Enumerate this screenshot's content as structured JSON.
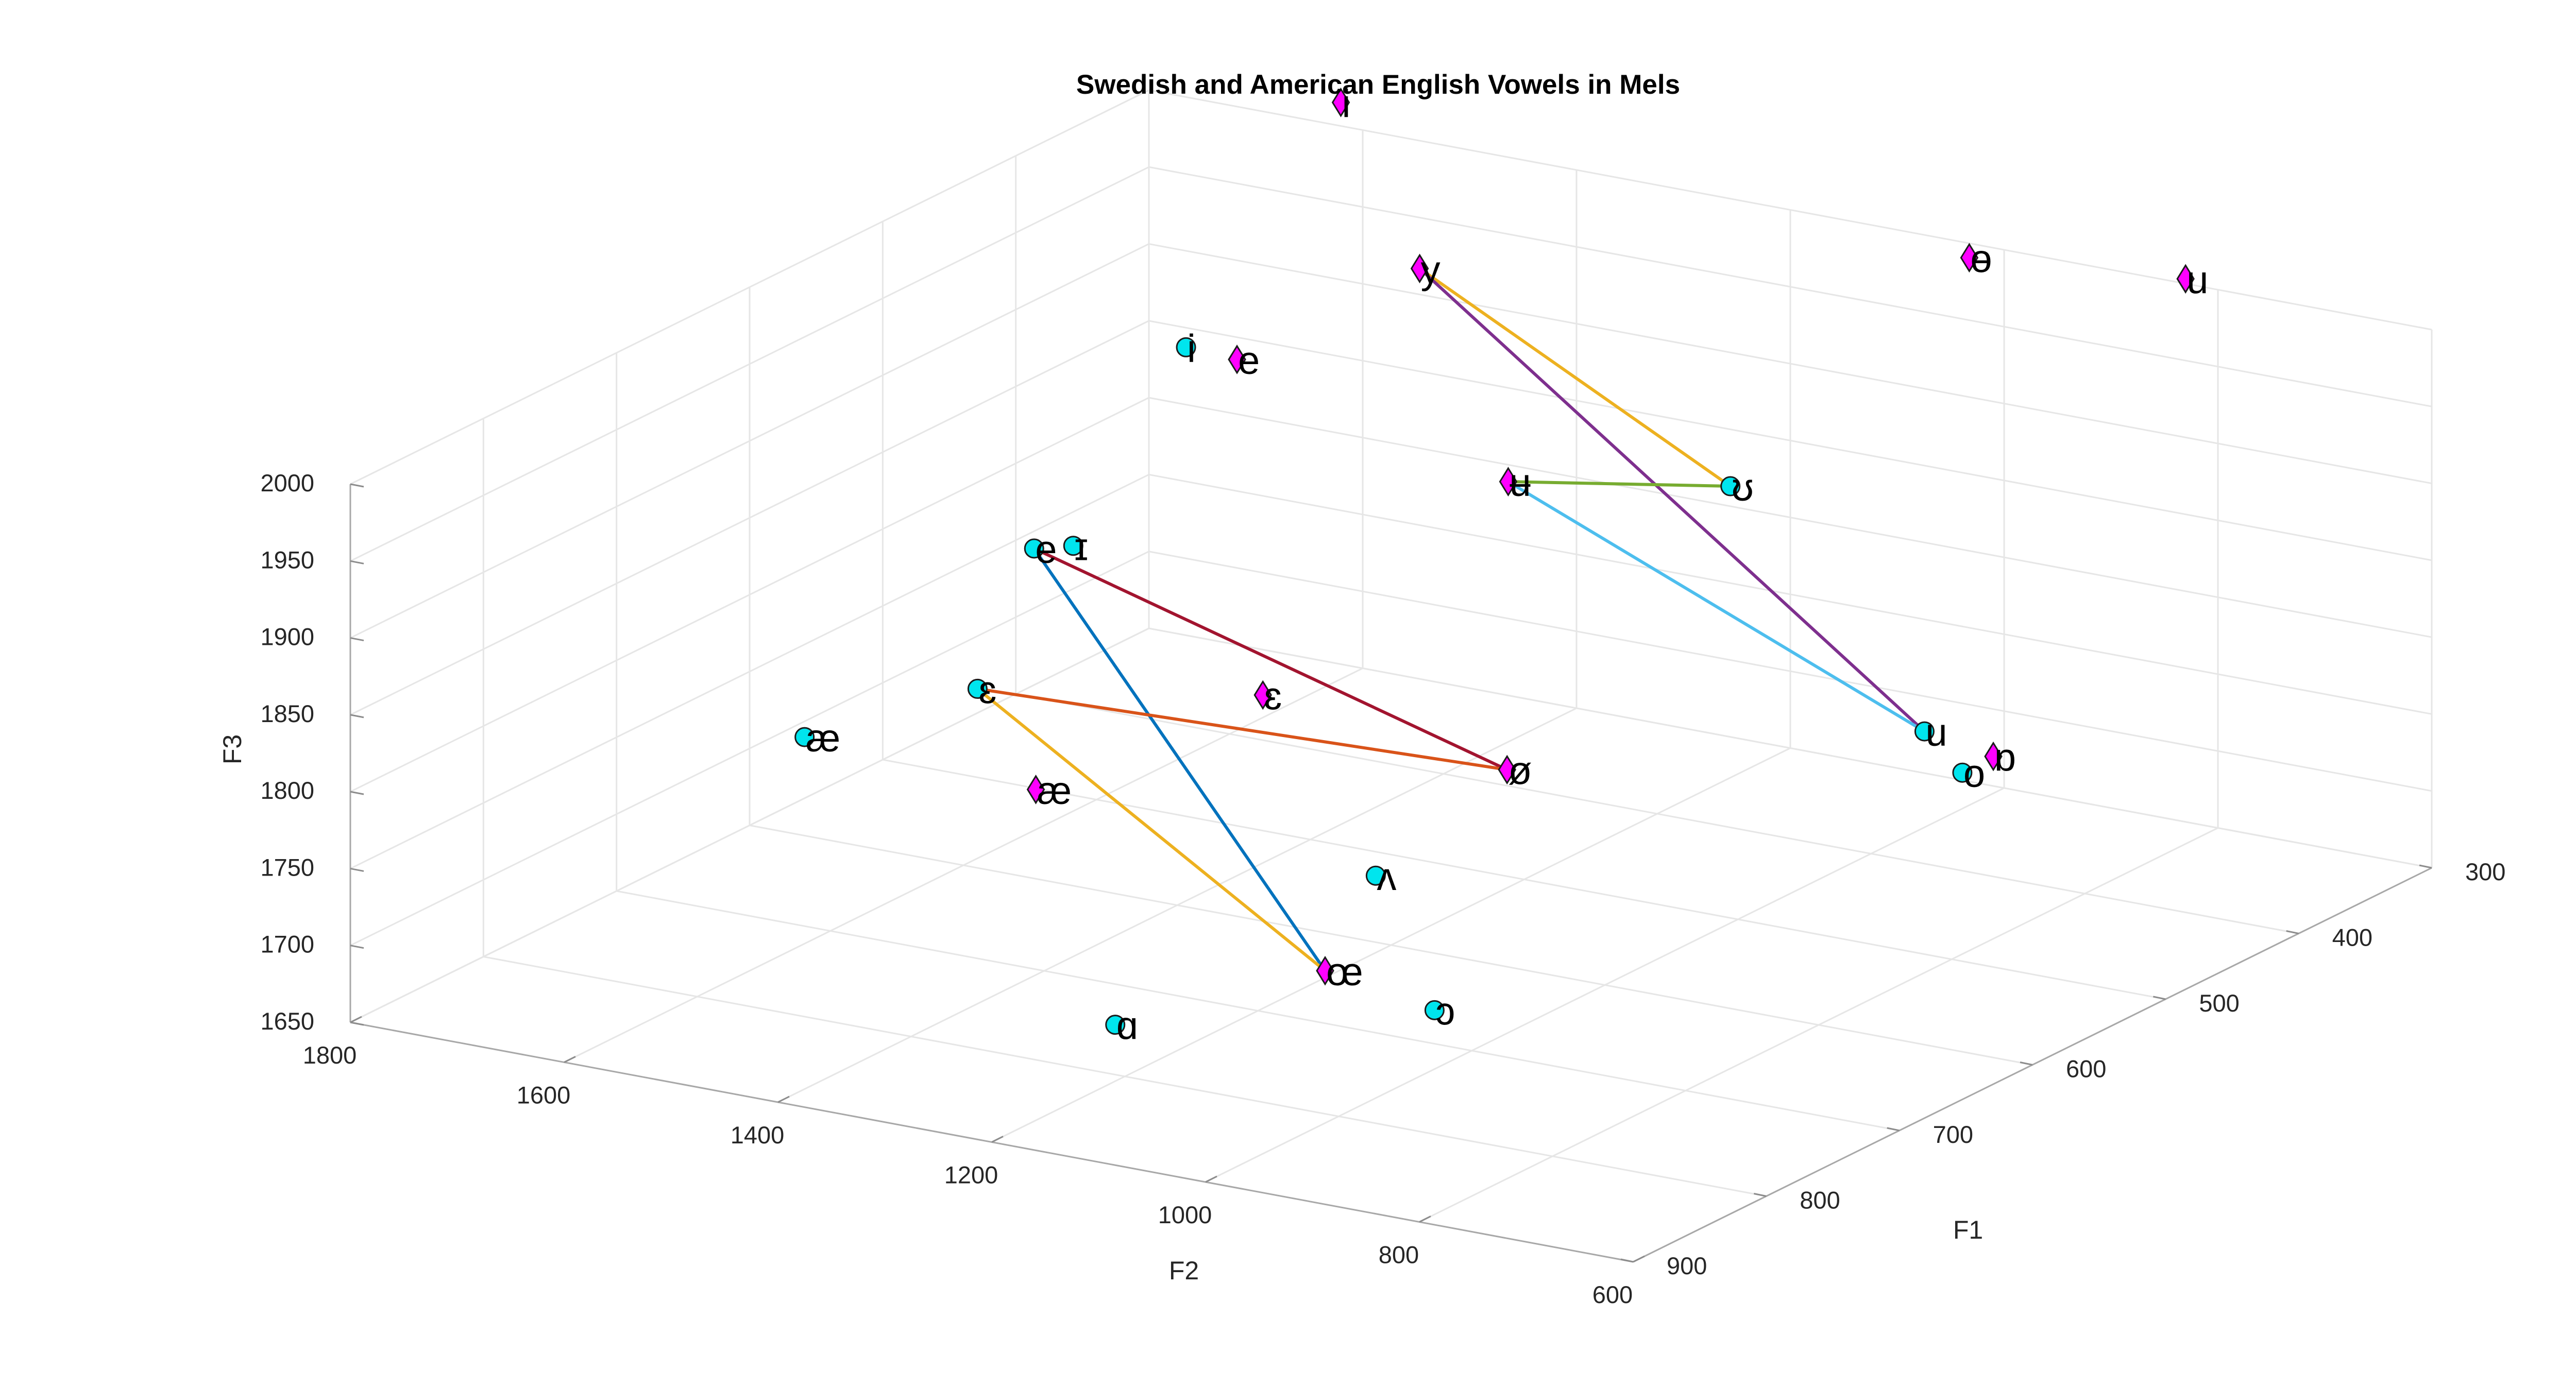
{
  "chart_data": {
    "type": "scatter3d",
    "title": "Swedish and American English Vowels in Mels",
    "xlabel": "F2",
    "ylabel": "F1",
    "zlabel": "F3",
    "xlim": [
      600,
      1800
    ],
    "ylim": [
      300,
      900
    ],
    "zlim": [
      1650,
      2000
    ],
    "xticks": [
      "600",
      "800",
      "1000",
      "1200",
      "1400",
      "1600",
      "1800"
    ],
    "yticks": [
      "300",
      "400",
      "500",
      "600",
      "700",
      "800",
      "900"
    ],
    "zticks": [
      "1650",
      "1700",
      "1750",
      "1800",
      "1850",
      "1900",
      "1950",
      "2000"
    ],
    "grid": true,
    "view": "3d-perspective",
    "series": [
      {
        "marker": "circle",
        "color": "#00e5ee",
        "points": [
          {
            "label": "i",
            "F2": 1713,
            "F1": 342,
            "F3": 1862
          },
          {
            "label": "ɪ",
            "F2": 1618,
            "F1": 503,
            "F3": 1814
          },
          {
            "label": "e",
            "F2": 1626,
            "F1": 526,
            "F3": 1821
          },
          {
            "label": "ɛ",
            "F2": 1537,
            "F1": 640,
            "F3": 1790
          },
          {
            "label": "æ",
            "F2": 1588,
            "F1": 729,
            "F3": 1790
          },
          {
            "label": "ʌ",
            "F2": 1162,
            "F1": 642,
            "F3": 1718
          },
          {
            "label": "ɑ",
            "F2": 1138,
            "F1": 857,
            "F3": 1716
          },
          {
            "label": "ɔ",
            "F2": 990,
            "F1": 736,
            "F3": 1693
          },
          {
            "label": "o",
            "F2": 876,
            "F1": 431,
            "F3": 1732
          },
          {
            "label": "ʊ",
            "F2": 1144,
            "F1": 390,
            "F3": 1866
          },
          {
            "label": "u",
            "F2": 950,
            "F1": 400,
            "F3": 1736
          }
        ]
      },
      {
        "marker": "diamond",
        "color": "#ff00ff",
        "points": [
          {
            "label": "i",
            "F2": 1674,
            "F1": 257,
            "F3": 1990
          },
          {
            "label": "y",
            "F2": 1538,
            "F1": 307,
            "F3": 1921
          },
          {
            "label": "e",
            "F2": 1613,
            "F1": 384,
            "F3": 1885
          },
          {
            "label": "ɛ",
            "F2": 1356,
            "F1": 571,
            "F3": 1780
          },
          {
            "label": "æ",
            "F2": 1414,
            "F1": 695,
            "F3": 1764
          },
          {
            "label": "ø",
            "F2": 1206,
            "F1": 508,
            "F3": 1724
          },
          {
            "label": "œ",
            "F2": 1182,
            "F1": 664,
            "F3": 1663
          },
          {
            "label": "ʉ",
            "F2": 1373,
            "F1": 373,
            "F3": 1832
          },
          {
            "label": "ɵ",
            "F2": 1182,
            "F1": 180,
            "F3": 1920
          },
          {
            "label": "u",
            "F2": 966,
            "F1": 191,
            "F3": 1939
          },
          {
            "label": "ɒ",
            "F2": 852,
            "F1": 427,
            "F3": 1744
          }
        ]
      }
    ],
    "connections": [
      {
        "from": "y",
        "to": "ʊ",
        "color": "#edb120"
      },
      {
        "from": "y",
        "to": "u",
        "color": "#7e2f8e"
      },
      {
        "from": "ʉ",
        "to": "ʊ",
        "color": "#77ac30"
      },
      {
        "from": "ʉ",
        "to": "u",
        "color": "#4dbeee"
      },
      {
        "from": "e",
        "to": "ø",
        "color": "#a2142f"
      },
      {
        "from": "e",
        "to": "œ",
        "color": "#0072bd"
      },
      {
        "from": "ɛ",
        "to": "ø",
        "color": "#d95319"
      },
      {
        "from": "ɛ",
        "to": "œ",
        "color": "#edb120"
      }
    ]
  }
}
